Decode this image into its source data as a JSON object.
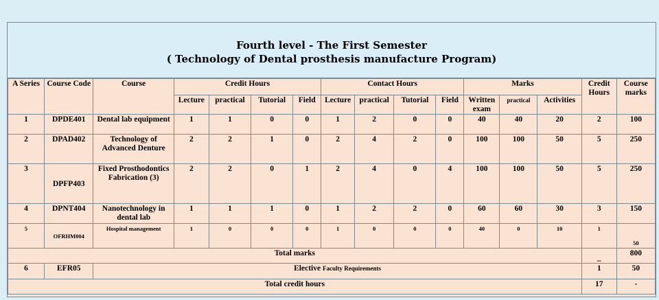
{
  "title": {
    "line1": "Fourth level - The First Semester",
    "line2": "( Technology of Dental prosthesis manufacture Program)"
  },
  "headers": {
    "series": "A Series",
    "code": "Course Code",
    "course": "Course",
    "credit_hours": "Credit Hours",
    "contact_hours": "Contact Hours",
    "marks": "Marks",
    "credit_hours_total": "Credit Hours",
    "course_marks": "Course marks",
    "sub": {
      "lecture": "Lecture",
      "practical": "practical",
      "tutorial": "Tutorial",
      "field": "Field",
      "written": "Written exam",
      "marks_practical": "practical",
      "activities": "Activities"
    }
  },
  "rows": [
    {
      "series": "1",
      "code": "DPDE401",
      "course": "Dental lab equipment",
      "ch": [
        "1",
        "1",
        "0",
        "0"
      ],
      "co": [
        "1",
        "2",
        "0",
        "0"
      ],
      "marks": [
        "40",
        "40",
        "20"
      ],
      "credit": "2",
      "total": "100"
    },
    {
      "series": "2",
      "code": "DPAD402",
      "course": "Technology of Advanced Denture",
      "ch": [
        "2",
        "2",
        "1",
        "0"
      ],
      "co": [
        "2",
        "4",
        "2",
        "0"
      ],
      "marks": [
        "100",
        "100",
        "50"
      ],
      "credit": "5",
      "total": "250"
    },
    {
      "series": "3",
      "code": "DPFP403",
      "course": "Fixed Prosthodontics Fabrication (3)",
      "ch": [
        "2",
        "2",
        "0",
        "1"
      ],
      "co": [
        "2",
        "4",
        "0",
        "4"
      ],
      "marks": [
        "100",
        "100",
        "50"
      ],
      "credit": "5",
      "total": "250"
    },
    {
      "series": "4",
      "code": "DPNT404",
      "course": "Nanotechnology in dental lab",
      "ch": [
        "1",
        "1",
        "1",
        "0"
      ],
      "co": [
        "1",
        "2",
        "2",
        "0"
      ],
      "marks": [
        "60",
        "60",
        "30"
      ],
      "credit": "3",
      "total": "150"
    },
    {
      "series": "5",
      "code": "OFRHM004",
      "course": "Hospital management",
      "ch": [
        "1",
        "0",
        "0",
        "0"
      ],
      "co": [
        "1",
        "0",
        "0",
        "0"
      ],
      "marks": [
        "40",
        "0",
        "10"
      ],
      "credit": "1",
      "total": "50"
    }
  ],
  "total_marks": {
    "label": "Total marks",
    "credit": "_",
    "value": "800"
  },
  "elective": {
    "series": "6",
    "code": "EFR05",
    "label_main": "Elective",
    "label_small": "Faculty Requirements",
    "credit": "1",
    "value": "50"
  },
  "total_credit": {
    "label": "Total  credit hours",
    "credit": "17",
    "value": "-"
  }
}
